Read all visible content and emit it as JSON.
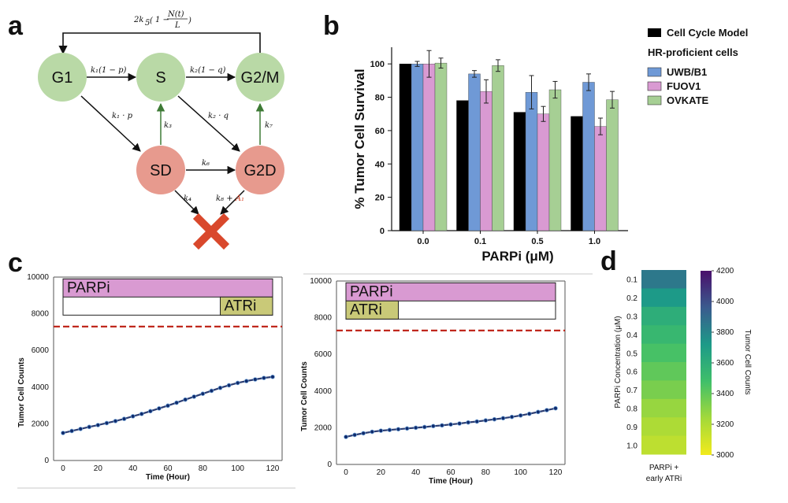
{
  "labels": {
    "a": "a",
    "b": "b",
    "c": "c",
    "d": "d"
  },
  "diagram": {
    "nodes": {
      "g1": "G1",
      "s": "S",
      "g2m": "G2/M",
      "sd": "SD",
      "g2d": "G2D"
    },
    "rates": {
      "feedback_prefix": "2k",
      "feedback_sub": "5",
      "feedback_numerator": "N(t)",
      "feedback_denominator": "L",
      "g1_s": "k₁(1 − p)",
      "s_g2m": "k₂(1 − q)",
      "g1_sd": "k₁ · p",
      "s_g2d": "k₂ · q",
      "sd_s": "k₃",
      "g2d_g2m": "k₇",
      "sd_g2d": "k₆",
      "sd_death": "k₄",
      "g2d_death_base": "k₈ + ",
      "g2d_death_extra": "A₁"
    },
    "colors": {
      "green_node": "#b9d9a6",
      "red_node": "#e79a8e",
      "death": "#d9482c",
      "highlight": "#d9482c"
    }
  },
  "chart_data": [
    {
      "type": "bar",
      "title": "",
      "categories": [
        "0.0",
        "0.1",
        "0.5",
        "1.0"
      ],
      "xlabel": "PARPi (μM)",
      "ylabel": "% Tumor Cell Survival",
      "ylim": [
        0,
        110
      ],
      "yticks": [
        "0",
        "20",
        "40",
        "60",
        "80",
        "100"
      ],
      "legend_heading": "HR-proficient cells",
      "series": [
        {
          "name": "Cell Cycle Model",
          "color": "#000000",
          "values": [
            100,
            78,
            71,
            68.5
          ],
          "errors": [
            0,
            0,
            0,
            0
          ]
        },
        {
          "name": "UWB/B1",
          "color": "#6f99d6",
          "values": [
            100,
            94,
            83,
            89
          ],
          "errors": [
            1.5,
            2,
            10,
            5
          ]
        },
        {
          "name": "FUOV1",
          "color": "#d99ad2",
          "values": [
            100,
            83.5,
            70,
            62.5
          ],
          "errors": [
            8,
            7,
            4.5,
            5
          ]
        },
        {
          "name": "OVKATE",
          "color": "#a6cf94",
          "values": [
            100.5,
            99,
            84.5,
            78.5
          ],
          "errors": [
            3,
            3.5,
            5,
            5
          ]
        }
      ]
    },
    {
      "type": "line",
      "xlabel": "Time (Hour)",
      "ylabel": "Tumor Cell Counts",
      "ylim": [
        0,
        10000
      ],
      "xlim": [
        0,
        120
      ],
      "xticks": [
        "0",
        "20",
        "40",
        "60",
        "80",
        "100",
        "120"
      ],
      "yticks": [
        "0",
        "2000",
        "4000",
        "6000",
        "8000",
        "10000"
      ],
      "threshold": 7300,
      "treatments": [
        {
          "label": "PARPi",
          "start": 0,
          "end": 120,
          "color": "#d99ad2"
        },
        {
          "label": "ATRi",
          "start": 90,
          "end": 120,
          "color": "#c9c978"
        }
      ],
      "series": [
        {
          "name": "Tumor cell counts",
          "x": [
            0,
            5,
            10,
            15,
            20,
            25,
            30,
            35,
            40,
            45,
            50,
            55,
            60,
            65,
            70,
            75,
            80,
            85,
            90,
            95,
            100,
            105,
            110,
            115,
            120
          ],
          "values": [
            1500,
            1610,
            1720,
            1830,
            1930,
            2040,
            2150,
            2270,
            2410,
            2540,
            2690,
            2840,
            2990,
            3150,
            3320,
            3480,
            3640,
            3800,
            3960,
            4100,
            4230,
            4330,
            4420,
            4500,
            4560
          ]
        }
      ]
    },
    {
      "type": "line",
      "xlabel": "Time (Hour)",
      "ylabel": "Tumor Cell Counts",
      "ylim": [
        0,
        10000
      ],
      "xlim": [
        0,
        120
      ],
      "xticks": [
        "0",
        "20",
        "40",
        "60",
        "80",
        "100",
        "120"
      ],
      "yticks": [
        "0",
        "2000",
        "4000",
        "6000",
        "8000",
        "10000"
      ],
      "threshold": 7300,
      "treatments": [
        {
          "label": "PARPi",
          "start": 0,
          "end": 120,
          "color": "#d99ad2"
        },
        {
          "label": "ATRi",
          "start": 0,
          "end": 30,
          "color": "#c9c978"
        }
      ],
      "series": [
        {
          "name": "Tumor cell counts",
          "x": [
            0,
            5,
            10,
            15,
            20,
            25,
            30,
            35,
            40,
            45,
            50,
            55,
            60,
            65,
            70,
            75,
            80,
            85,
            90,
            95,
            100,
            105,
            110,
            115,
            120
          ],
          "values": [
            1500,
            1610,
            1700,
            1780,
            1840,
            1880,
            1920,
            1960,
            2000,
            2040,
            2090,
            2130,
            2180,
            2230,
            2290,
            2340,
            2400,
            2460,
            2520,
            2590,
            2670,
            2760,
            2860,
            2960,
            3060
          ]
        }
      ]
    },
    {
      "type": "heatmap",
      "ylabel": "PARPi Concentration (μM)",
      "xlabel_line1": "PARPi +",
      "xlabel_line2": "early ATRi",
      "rows": [
        "0.1",
        "0.2",
        "0.3",
        "0.4",
        "0.5",
        "0.6",
        "0.7",
        "0.8",
        "0.9",
        "1.0"
      ],
      "values": [
        3850,
        3720,
        3600,
        3530,
        3460,
        3400,
        3340,
        3270,
        3210,
        3160
      ],
      "colorbar_label": "Tumor Cell Counts",
      "colorbar_min": 3000,
      "colorbar_max": 4200,
      "colorbar_ticks": [
        "3000",
        "3200",
        "3400",
        "3600",
        "3800",
        "4000",
        "4200"
      ]
    }
  ]
}
